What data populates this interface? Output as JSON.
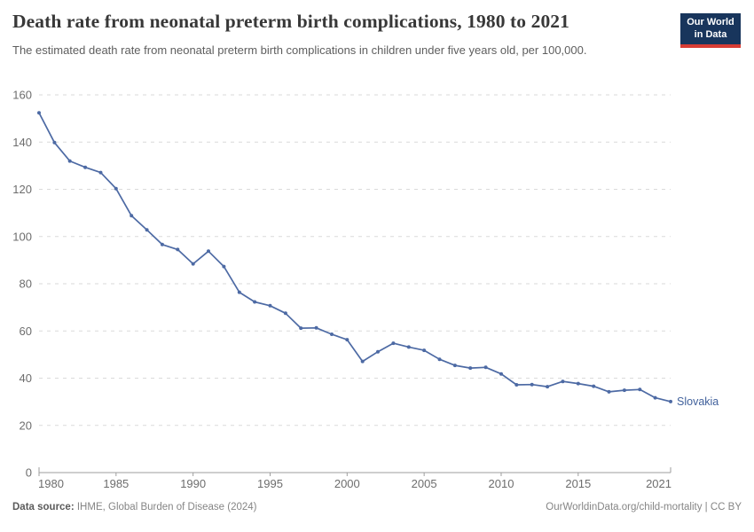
{
  "header": {
    "title": "Death rate from neonatal preterm birth complications, 1980 to 2021",
    "subtitle": "The estimated death rate from neonatal preterm birth complications in children under five years old, per 100,000.",
    "logo": {
      "line1": "Our World",
      "line2": "in Data"
    }
  },
  "footer": {
    "source_label": "Data source:",
    "source_text": " IHME, Global Burden of Disease (2024)",
    "rights": "OurWorldinData.org/child-mortality | CC BY"
  },
  "theme": {
    "line_color": "#4d6aa4",
    "entity_label_color": "#41619c",
    "grid_color": "#dadada",
    "axis_color": "#9e9e9e",
    "tick_label_color": "#6d6d6d",
    "title_color": "#383838",
    "subtitle_color": "#5e5e5e",
    "logo_bg": "#18355c",
    "logo_bar": "#d73c34"
  },
  "chart_data": {
    "type": "line",
    "title": "Death rate from neonatal preterm birth complications, 1980 to 2021",
    "subtitle": "The estimated death rate from neonatal preterm birth complications in children under five years old, per 100,000.",
    "xlabel": "",
    "ylabel": "",
    "xlim": [
      1980,
      2021
    ],
    "ylim": [
      0,
      160
    ],
    "xticks": [
      1980,
      1985,
      1990,
      1995,
      2000,
      2005,
      2010,
      2015,
      2021
    ],
    "yticks": [
      0,
      20,
      40,
      60,
      80,
      100,
      120,
      140,
      160
    ],
    "grid": "horizontal-dashed",
    "legend": "inline-end-label",
    "x": [
      1980,
      1981,
      1982,
      1983,
      1984,
      1985,
      1986,
      1987,
      1988,
      1989,
      1990,
      1991,
      1992,
      1993,
      1994,
      1995,
      1996,
      1997,
      1998,
      1999,
      2000,
      2001,
      2002,
      2003,
      2004,
      2005,
      2006,
      2007,
      2008,
      2009,
      2010,
      2011,
      2012,
      2013,
      2014,
      2015,
      2016,
      2017,
      2018,
      2019,
      2020,
      2021
    ],
    "series": [
      {
        "name": "Slovakia",
        "values": [
          152.4,
          139.8,
          132.0,
          129.3,
          127.1,
          120.3,
          108.8,
          102.8,
          96.6,
          94.5,
          88.4,
          93.8,
          87.3,
          76.4,
          72.3,
          70.7,
          67.5,
          61.2,
          61.3,
          58.6,
          56.3,
          47.1,
          51.2,
          54.8,
          53.2,
          51.8,
          48.0,
          45.4,
          44.3,
          44.6,
          41.8,
          37.2,
          37.3,
          36.4,
          38.6,
          37.7,
          36.6,
          34.2,
          34.9,
          35.2,
          31.7,
          30.1
        ]
      }
    ]
  }
}
